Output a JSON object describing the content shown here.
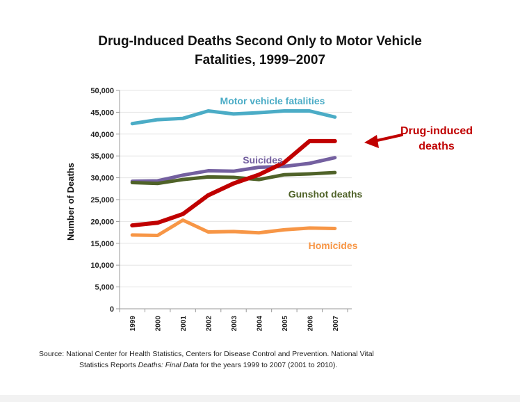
{
  "chart_data": {
    "type": "line",
    "title_line1": "Drug-Induced Deaths Second Only to Motor Vehicle",
    "title_line2": "Fatalities, 1999–2007",
    "xlabel": "",
    "ylabel": "Number of Deaths",
    "ylim": [
      0,
      50000
    ],
    "yticks": [
      0,
      5000,
      10000,
      15000,
      20000,
      25000,
      30000,
      35000,
      40000,
      45000,
      50000
    ],
    "ytick_labels": [
      "0",
      "5,000",
      "10,000",
      "15,000",
      "20,000",
      "25,000",
      "30,000",
      "35,000",
      "40,000",
      "45,000",
      "50,000"
    ],
    "categories": [
      "1999",
      "2000",
      "2001",
      "2002",
      "2003",
      "2004",
      "2005",
      "2006",
      "2007"
    ],
    "grid": "horizontal",
    "legend": "inline labels",
    "series": [
      {
        "name": "Motor vehicle fatalities",
        "label": "Motor vehicle fatalities",
        "color": "#4bacc6",
        "values": [
          42400,
          43300,
          43600,
          45300,
          44600,
          44900,
          45300,
          45300,
          43900
        ]
      },
      {
        "name": "Drug-induced deaths",
        "label_line1": "Drug-induced",
        "label_line2": "deaths",
        "color": "#c00000",
        "values": [
          19100,
          19700,
          21700,
          26000,
          28700,
          30700,
          33500,
          38400,
          38400
        ]
      },
      {
        "name": "Suicides",
        "label": "Suicides",
        "color": "#7460a0",
        "values": [
          29200,
          29300,
          30600,
          31600,
          31500,
          32400,
          32600,
          33300,
          34600
        ]
      },
      {
        "name": "Gunshot deaths",
        "label": "Gunshot deaths",
        "color": "#4f6228",
        "values": [
          28900,
          28700,
          29600,
          30200,
          30100,
          29600,
          30700,
          30900,
          31200
        ]
      },
      {
        "name": "Homicides",
        "label": "Homicides",
        "color": "#f79646",
        "values": [
          16900,
          16800,
          20300,
          17600,
          17700,
          17400,
          18100,
          18500,
          18400
        ]
      }
    ],
    "annotations": [
      {
        "text": "Drug-induced deaths",
        "type": "arrow",
        "points_to": "Drug-induced deaths 2007"
      }
    ]
  },
  "source": {
    "line1": "Source:  National Center for Health Statistics, Centers for Disease Control and Prevention.  National Vital",
    "line2_a": "Statistics Reports ",
    "line2_italic": "Deaths:  Final Data",
    "line2_b": " for the years 1999 to 2007 (2001 to 2010)."
  }
}
